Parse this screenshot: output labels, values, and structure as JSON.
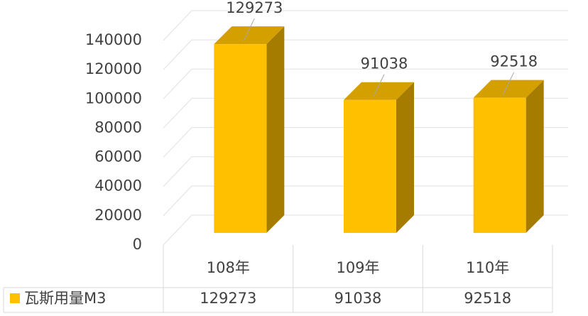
{
  "chart_data": {
    "type": "bar",
    "categories": [
      "108年",
      "109年",
      "110年"
    ],
    "series": [
      {
        "name": "瓦斯用量M3",
        "color": "#ffc000",
        "values": [
          129273,
          91038,
          92518
        ]
      }
    ],
    "ylim": [
      0,
      140000
    ],
    "yticks": [
      0,
      20000,
      40000,
      60000,
      80000,
      100000,
      120000,
      140000
    ],
    "grid": true,
    "data_table": true
  }
}
